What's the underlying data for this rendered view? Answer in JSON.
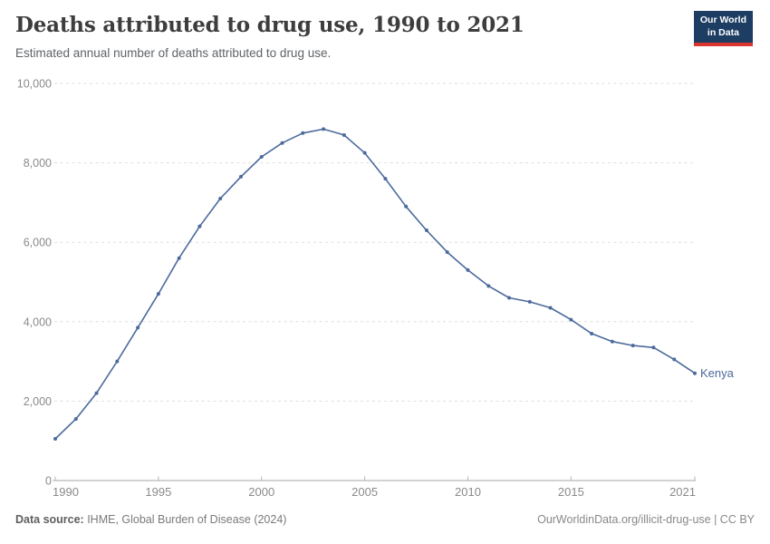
{
  "header": {
    "logo": {
      "line1": "Our World",
      "line2": "in Data"
    }
  },
  "chart_data": {
    "type": "line",
    "title": "Deaths attributed to drug use, 1990 to 2021",
    "subtitle": "Estimated annual number of deaths attributed to drug use.",
    "x": [
      1990,
      1991,
      1992,
      1993,
      1994,
      1995,
      1996,
      1997,
      1998,
      1999,
      2000,
      2001,
      2002,
      2003,
      2004,
      2005,
      2006,
      2007,
      2008,
      2009,
      2010,
      2011,
      2012,
      2013,
      2014,
      2015,
      2016,
      2017,
      2018,
      2019,
      2020,
      2021
    ],
    "series": [
      {
        "name": "Kenya",
        "values": [
          1050,
          1550,
          2200,
          3000,
          3850,
          4700,
          5600,
          6400,
          7100,
          7650,
          8150,
          8500,
          8750,
          8850,
          8700,
          8250,
          7600,
          6900,
          6300,
          5750,
          5300,
          4900,
          4600,
          4500,
          4350,
          4050,
          3700,
          3500,
          3400,
          3350,
          3050,
          2700
        ]
      }
    ],
    "xlim": [
      1990,
      2021
    ],
    "ylim": [
      0,
      10000
    ],
    "x_ticks": [
      1990,
      1995,
      2000,
      2005,
      2010,
      2015,
      2021
    ],
    "x_tick_labels": [
      "1990",
      "1995",
      "2000",
      "2005",
      "2010",
      "2015",
      "2021"
    ],
    "y_ticks": [
      0,
      2000,
      4000,
      6000,
      8000,
      10000
    ],
    "y_tick_labels": [
      "0",
      "2,000",
      "4,000",
      "6,000",
      "8,000",
      "10,000"
    ],
    "grid": "horizontal-dashed",
    "legend_position": "end-of-line-label",
    "series_label": "Kenya",
    "line_color": "#4c6a9c",
    "grid_color": "#dedede",
    "axis_color": "#a5a5a5",
    "tick_color": "#b5b5b5",
    "tick_label_color": "#8a8a8a"
  },
  "footer": {
    "datasource_label": "Data source:",
    "datasource_value": " IHME, Global Burden of Disease (2024)",
    "credit": "OurWorldinData.org/illicit-drug-use | CC BY"
  }
}
